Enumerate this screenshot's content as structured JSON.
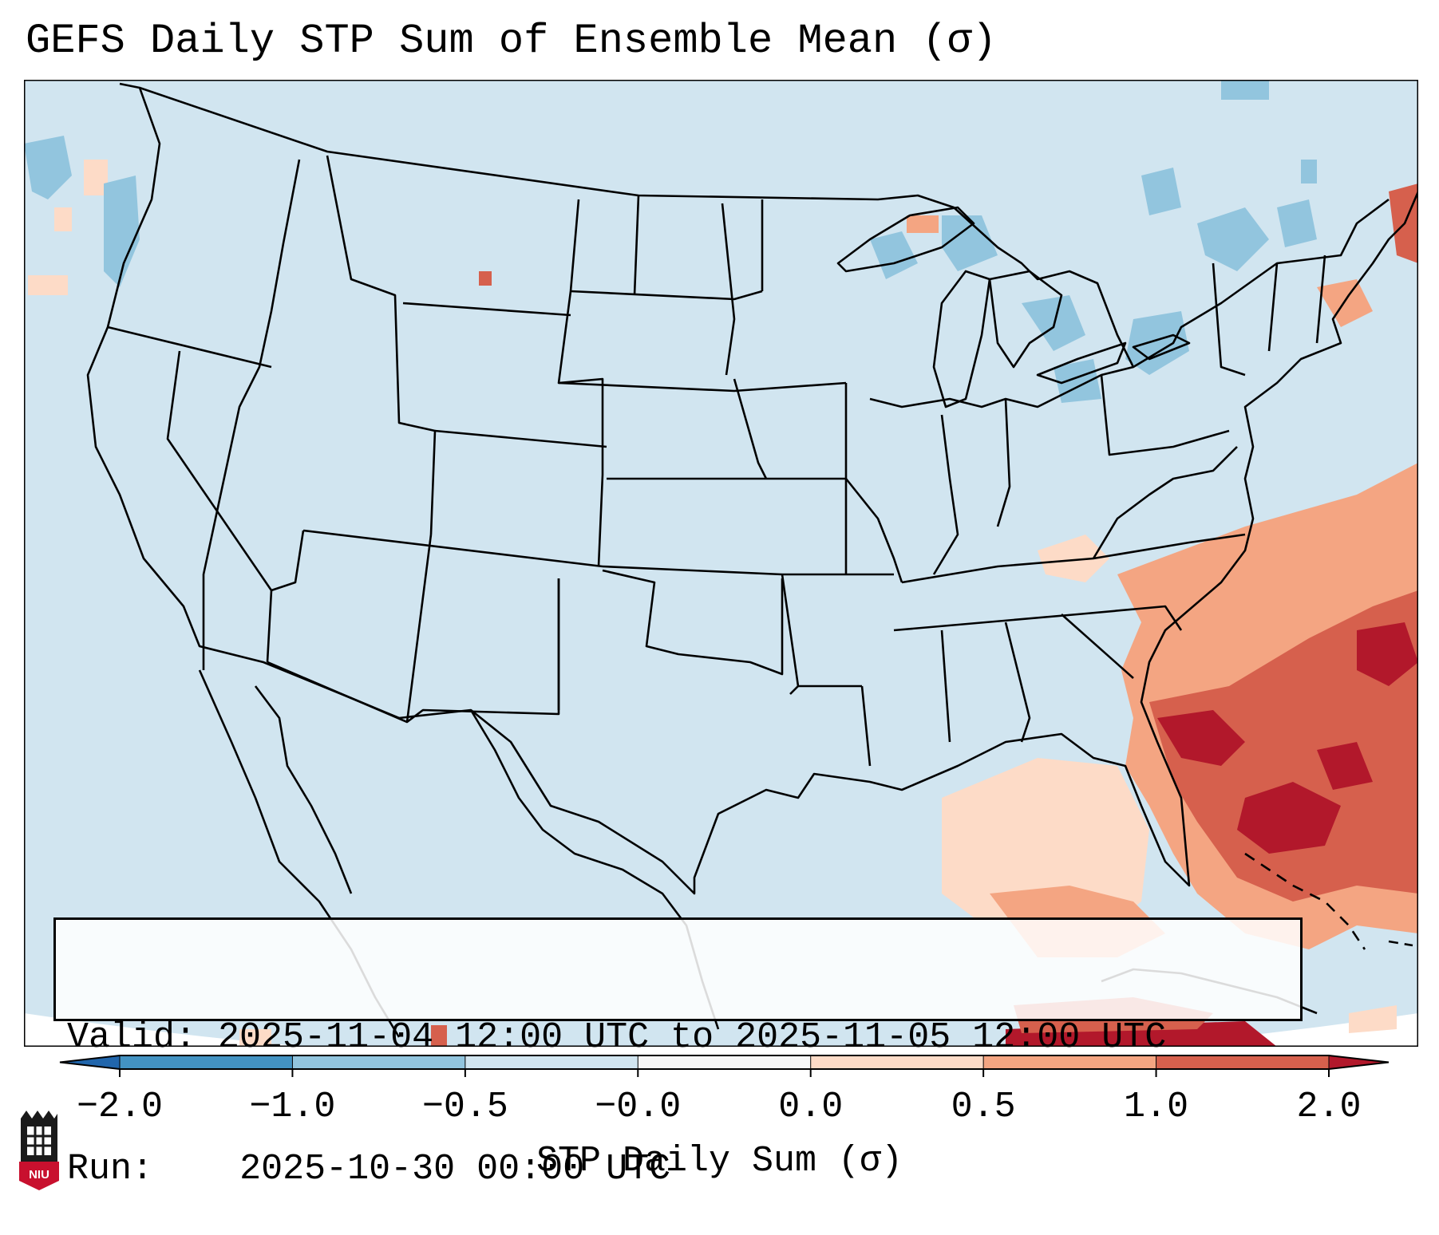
{
  "title": "GEFS Daily STP Sum of Ensemble Mean (σ)",
  "info": {
    "valid_label": "Valid:",
    "valid_value": "2025-11-04 12:00 UTC to 2025-11-05 12:00 UTC",
    "run_label": "Run:",
    "run_value": "2025-10-30 00:00 UTC"
  },
  "colorbar": {
    "title": "STP Daily Sum (σ)",
    "ticks": [
      "−2.0",
      "−1.0",
      "−0.5",
      "−0.0",
      "0.0",
      "0.5",
      "1.0",
      "2.0"
    ],
    "colors": [
      "#4393c3",
      "#92c5de",
      "#d1e5f0",
      "#f7f7f7",
      "#fddbc7",
      "#f4a582",
      "#d6604d",
      "#b2182b"
    ],
    "extend_low_color": "#2166ac",
    "extend_high_color": "#b2182b"
  },
  "map": {
    "region": "Continental United States",
    "background_color": "#d1e5f0",
    "border_color": "#000000",
    "anomaly_cells": [
      {
        "lon": -70,
        "lat": 31,
        "value": 1.4
      },
      {
        "lon": -72,
        "lat": 29,
        "value": 1.6
      },
      {
        "lon": -68,
        "lat": 28,
        "value": 1.2
      },
      {
        "lon": -75,
        "lat": 27,
        "value": 1.1
      },
      {
        "lon": -71,
        "lat": 26,
        "value": 1.8
      },
      {
        "lon": -66,
        "lat": 25,
        "value": 1.5
      },
      {
        "lon": -78,
        "lat": 24,
        "value": 1.3
      },
      {
        "lon": -74,
        "lat": 23,
        "value": 1.7
      },
      {
        "lon": -80,
        "lat": 22,
        "value": 1.9
      },
      {
        "lon": -84,
        "lat": 21,
        "value": 1.2
      },
      {
        "lon": -86,
        "lat": 26,
        "value": 0.3
      },
      {
        "lon": -88,
        "lat": 27,
        "value": 0.4
      },
      {
        "lon": -75,
        "lat": 34,
        "value": 0.8
      },
      {
        "lon": -73,
        "lat": 33,
        "value": 0.6
      },
      {
        "lon": -110,
        "lat": 46,
        "value": 0.9
      },
      {
        "lon": -87,
        "lat": 47,
        "value": 0.5
      },
      {
        "lon": -85,
        "lat": 45,
        "value": -0.7
      },
      {
        "lon": -84,
        "lat": 46,
        "value": -0.6
      },
      {
        "lon": -76,
        "lat": 43,
        "value": -0.6
      },
      {
        "lon": -73,
        "lat": 47,
        "value": -0.7
      },
      {
        "lon": -124,
        "lat": 46,
        "value": -0.6
      }
    ]
  },
  "logo": {
    "text": "NIU",
    "color": "#c8102e"
  }
}
